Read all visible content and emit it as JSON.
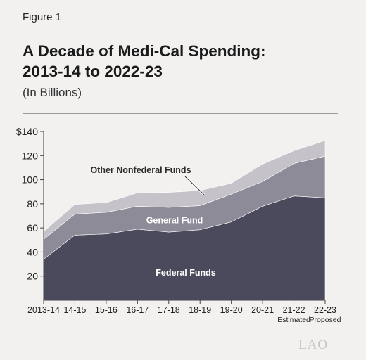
{
  "figure_label": "Figure 1",
  "title_line1": "A Decade of Medi-Cal Spending:",
  "title_line2": "2013-14 to 2022-23",
  "subtitle": "(In Billions)",
  "logo_text": "LAO",
  "colors": {
    "federal": "#4a4a5c",
    "general": "#8d8b97",
    "other": "#c5c2ca",
    "axis": "#444444",
    "label_light": "#ffffff",
    "label_dark": "#2a2a2a"
  },
  "chart_data": {
    "type": "area",
    "stacked": true,
    "categories": [
      "2013-14",
      "14-15",
      "15-16",
      "16-17",
      "17-18",
      "18-19",
      "19-20",
      "20-21",
      "21-22",
      "22-23"
    ],
    "category_sublabels": [
      "",
      "",
      "",
      "",
      "",
      "",
      "",
      "",
      "Estimated",
      "Proposed"
    ],
    "series": [
      {
        "name": "Federal Funds",
        "values": [
          34,
          54,
          55,
          59,
          56.5,
          58.5,
          65,
          78,
          86.5,
          85
        ]
      },
      {
        "name": "General Fund",
        "values": [
          16.5,
          17.5,
          18,
          19,
          20.5,
          20,
          23,
          20.5,
          27,
          34.5
        ]
      },
      {
        "name": "Other Nonfederal Funds",
        "values": [
          6.5,
          8,
          8,
          11,
          12.5,
          12.5,
          9,
          14.5,
          10.5,
          13
        ]
      }
    ],
    "y_ticks": [
      20,
      40,
      60,
      80,
      100,
      120,
      140
    ],
    "y_tick_labels": [
      "20",
      "40",
      "60",
      "80",
      "100",
      "120",
      "$140"
    ],
    "ylim": [
      0,
      140
    ],
    "grid": false,
    "legend": "inline labels"
  }
}
